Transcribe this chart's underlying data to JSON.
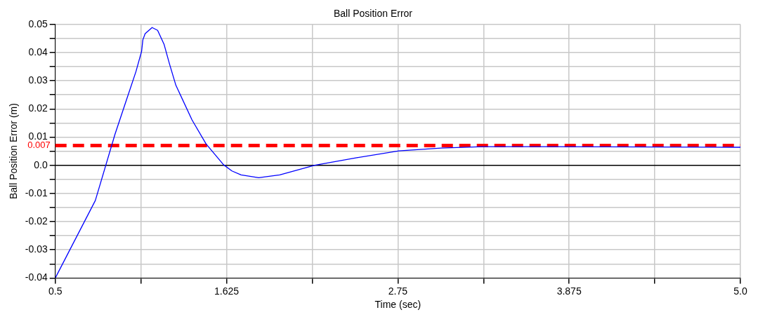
{
  "chart_data": {
    "type": "line",
    "title": "Ball Position Error",
    "xlabel": "Time (sec)",
    "ylabel": "Ball Position Error (m)",
    "xlim": [
      0.5,
      5.0
    ],
    "ylim": [
      -0.04,
      0.05
    ],
    "xticks": [
      0.5,
      {
        "value": 1.0625,
        "label": null
      },
      1.625,
      {
        "value": 2.1875,
        "label": null
      },
      2.75,
      {
        "value": 3.3125,
        "label": null
      },
      3.875,
      {
        "value": 4.4375,
        "label": null
      },
      {
        "value": 5.0,
        "label": "5.0"
      }
    ],
    "yticks": [
      -0.04,
      {
        "value": -0.035,
        "label": null
      },
      -0.03,
      {
        "value": -0.025,
        "label": null
      },
      -0.02,
      {
        "value": -0.015,
        "label": null
      },
      -0.01,
      {
        "value": -0.005,
        "label": null
      },
      {
        "value": 0,
        "label": "0.0"
      },
      {
        "value": 0.005,
        "label": null
      },
      0.01,
      {
        "value": 0.015,
        "label": null
      },
      0.02,
      {
        "value": 0.025,
        "label": null
      },
      0.03,
      {
        "value": 0.035,
        "label": null
      },
      0.04,
      {
        "value": 0.045,
        "label": null
      },
      0.05
    ],
    "grid": true,
    "legend": false,
    "marker": "none",
    "line_style": "solid",
    "ref_lines": [
      {
        "axis": "y",
        "value": 0.007,
        "label": "0.007",
        "color": "#ff0000",
        "line_style": "dashed"
      }
    ],
    "series": [
      {
        "color": "#0000ff",
        "x": [
          0.5,
          0.763,
          0.892,
          0.96,
          1.03,
          1.067,
          1.075,
          1.09,
          1.136,
          1.172,
          1.214,
          1.25,
          1.292,
          1.398,
          1.49,
          1.605,
          1.66,
          1.72,
          1.836,
          1.974,
          2.204,
          2.48,
          2.757,
          3.033,
          3.31,
          3.77,
          5.0
        ],
        "values": [
          -0.04,
          -0.0125,
          0.011,
          0.022,
          0.0333,
          0.0405,
          0.0445,
          0.0467,
          0.0489,
          0.0479,
          0.043,
          0.036,
          0.0284,
          0.0161,
          0.0076,
          0.0002,
          -0.002,
          -0.0034,
          -0.0044,
          -0.0034,
          0.0,
          0.0027,
          0.0051,
          0.0061,
          0.0066,
          0.0066,
          0.0064
        ]
      }
    ]
  }
}
